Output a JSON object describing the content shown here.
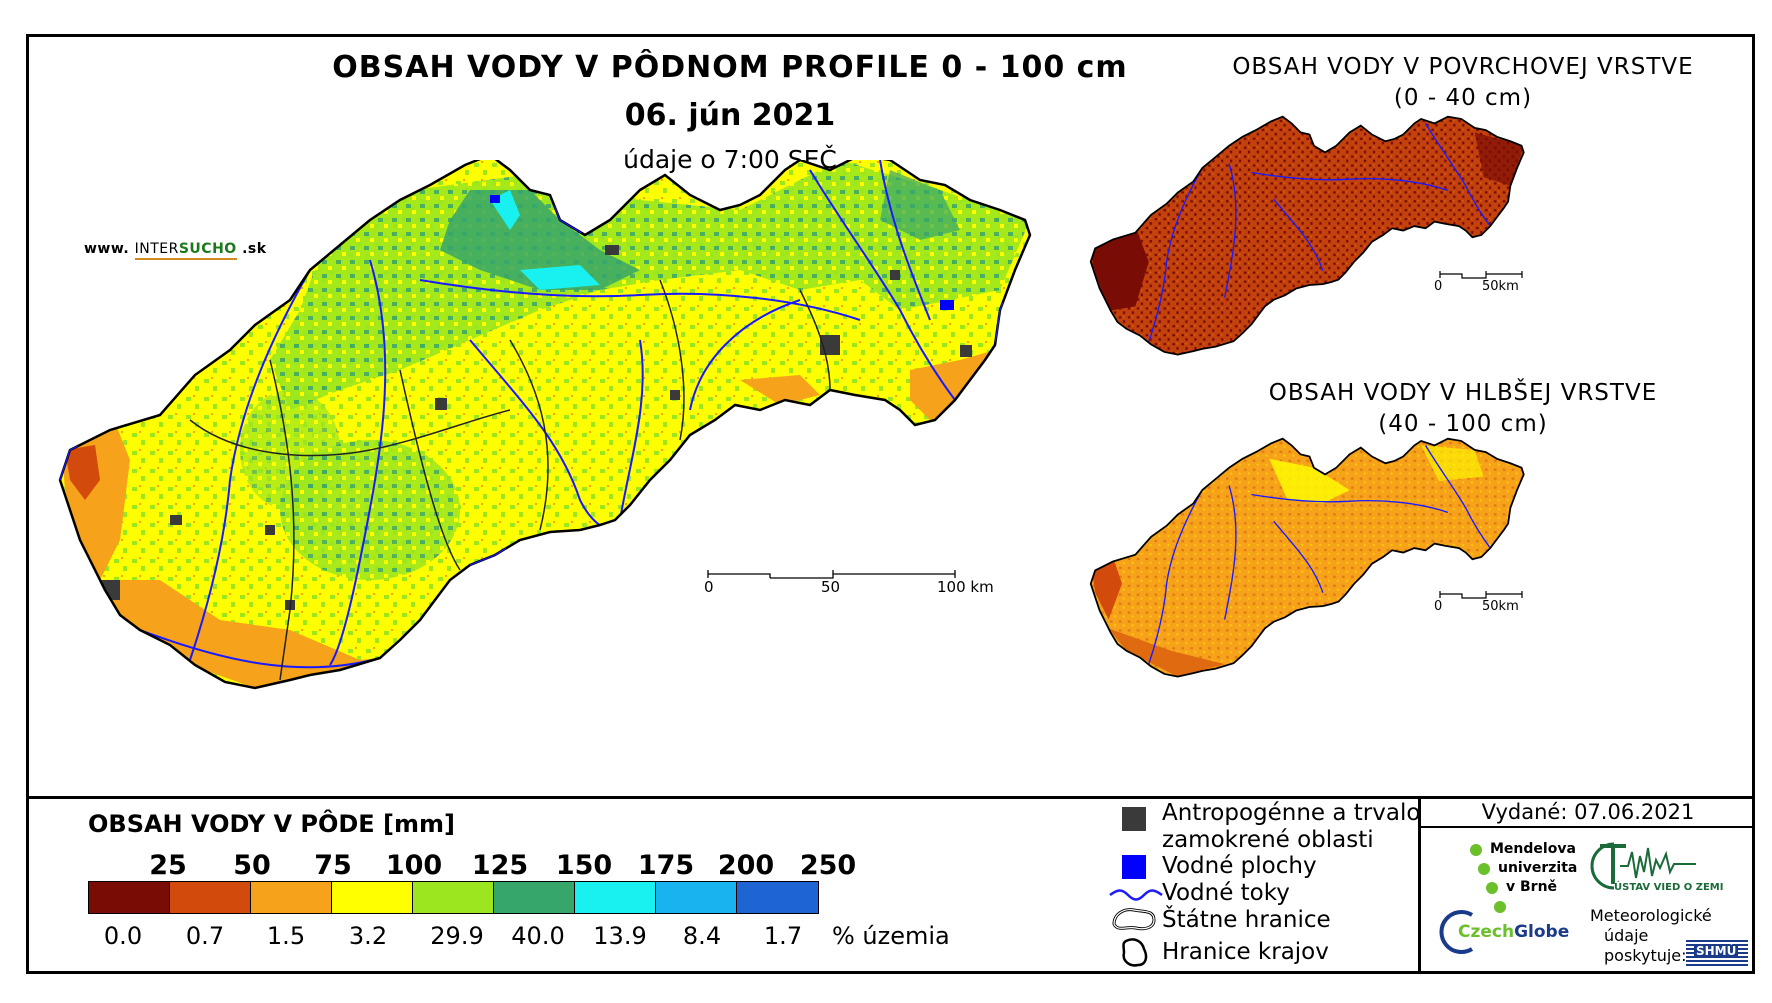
{
  "main_map": {
    "title": "OBSAH VODY V PÔDNOM PROFILE 0 - 100 cm",
    "date": "06. jún 2021",
    "subtitle": "údaje o 7:00 SEČ",
    "website_prefix": "www.",
    "website_brand_a": "INTER",
    "website_brand_b": "SUCHO",
    "website_suffix": ".sk",
    "scale": {
      "labels": [
        "0",
        "50",
        "100 km"
      ]
    }
  },
  "surface_map": {
    "title_line1": "OBSAH VODY V POVRCHOVEJ VRSTVE",
    "title_line2": "(0 - 40 cm)",
    "scale": {
      "labels": [
        "0",
        "50km"
      ]
    }
  },
  "deep_map": {
    "title_line1": "OBSAH VODY V HLBŠEJ VRSTVE",
    "title_line2": "(40 - 100 cm)",
    "scale": {
      "labels": [
        "0",
        "50km"
      ]
    }
  },
  "legend": {
    "title": "OBSAH VODY V PÔDE [mm]",
    "thresholds": [
      "25",
      "50",
      "75",
      "100",
      "125",
      "150",
      "175",
      "200",
      "250"
    ],
    "classes": [
      {
        "color": "#7a0c06",
        "percent": "0.0"
      },
      {
        "color": "#d24a0c",
        "percent": "0.7"
      },
      {
        "color": "#f6a21a",
        "percent": "1.5"
      },
      {
        "color": "#ffff00",
        "percent": "3.2"
      },
      {
        "color": "#9be61e",
        "percent": "29.9"
      },
      {
        "color": "#36a66a",
        "percent": "40.0"
      },
      {
        "color": "#19f0f0",
        "percent": "13.9"
      },
      {
        "color": "#19b4f0",
        "percent": "8.4"
      },
      {
        "color": "#1e64d2",
        "percent": "1.7"
      }
    ],
    "percent_unit": "% územia"
  },
  "symbols": [
    {
      "icon": "dark-square",
      "color": "#3a3a3a",
      "label_line1": "Antropogénne a trvalo",
      "label_line2": "zamokrené oblasti"
    },
    {
      "icon": "blue-square",
      "color": "#0000ff",
      "label_line1": "Vodné plochy"
    },
    {
      "icon": "river-line",
      "color": "#1a1aff",
      "label_line1": "Vodné toky"
    },
    {
      "icon": "state-border",
      "color": "#000000",
      "label_line1": "Štátne hranice"
    },
    {
      "icon": "region-border",
      "color": "#000000",
      "label_line1": "Hranice krajov"
    }
  ],
  "issued": "Vydané: 07.06.2021",
  "logos": {
    "mendel_line1": "Mendelova",
    "mendel_line2": "univerzita",
    "mendel_line3": "v Brně",
    "ustav": "ÚSTAV VIED O ZEMI",
    "czechglobe_a": "Czech",
    "czechglobe_b": "Globe",
    "meteo_line1": "Meteorologické",
    "meteo_line2": "údaje",
    "meteo_line3": "poskytuje:",
    "shmu": "SHMÚ"
  }
}
